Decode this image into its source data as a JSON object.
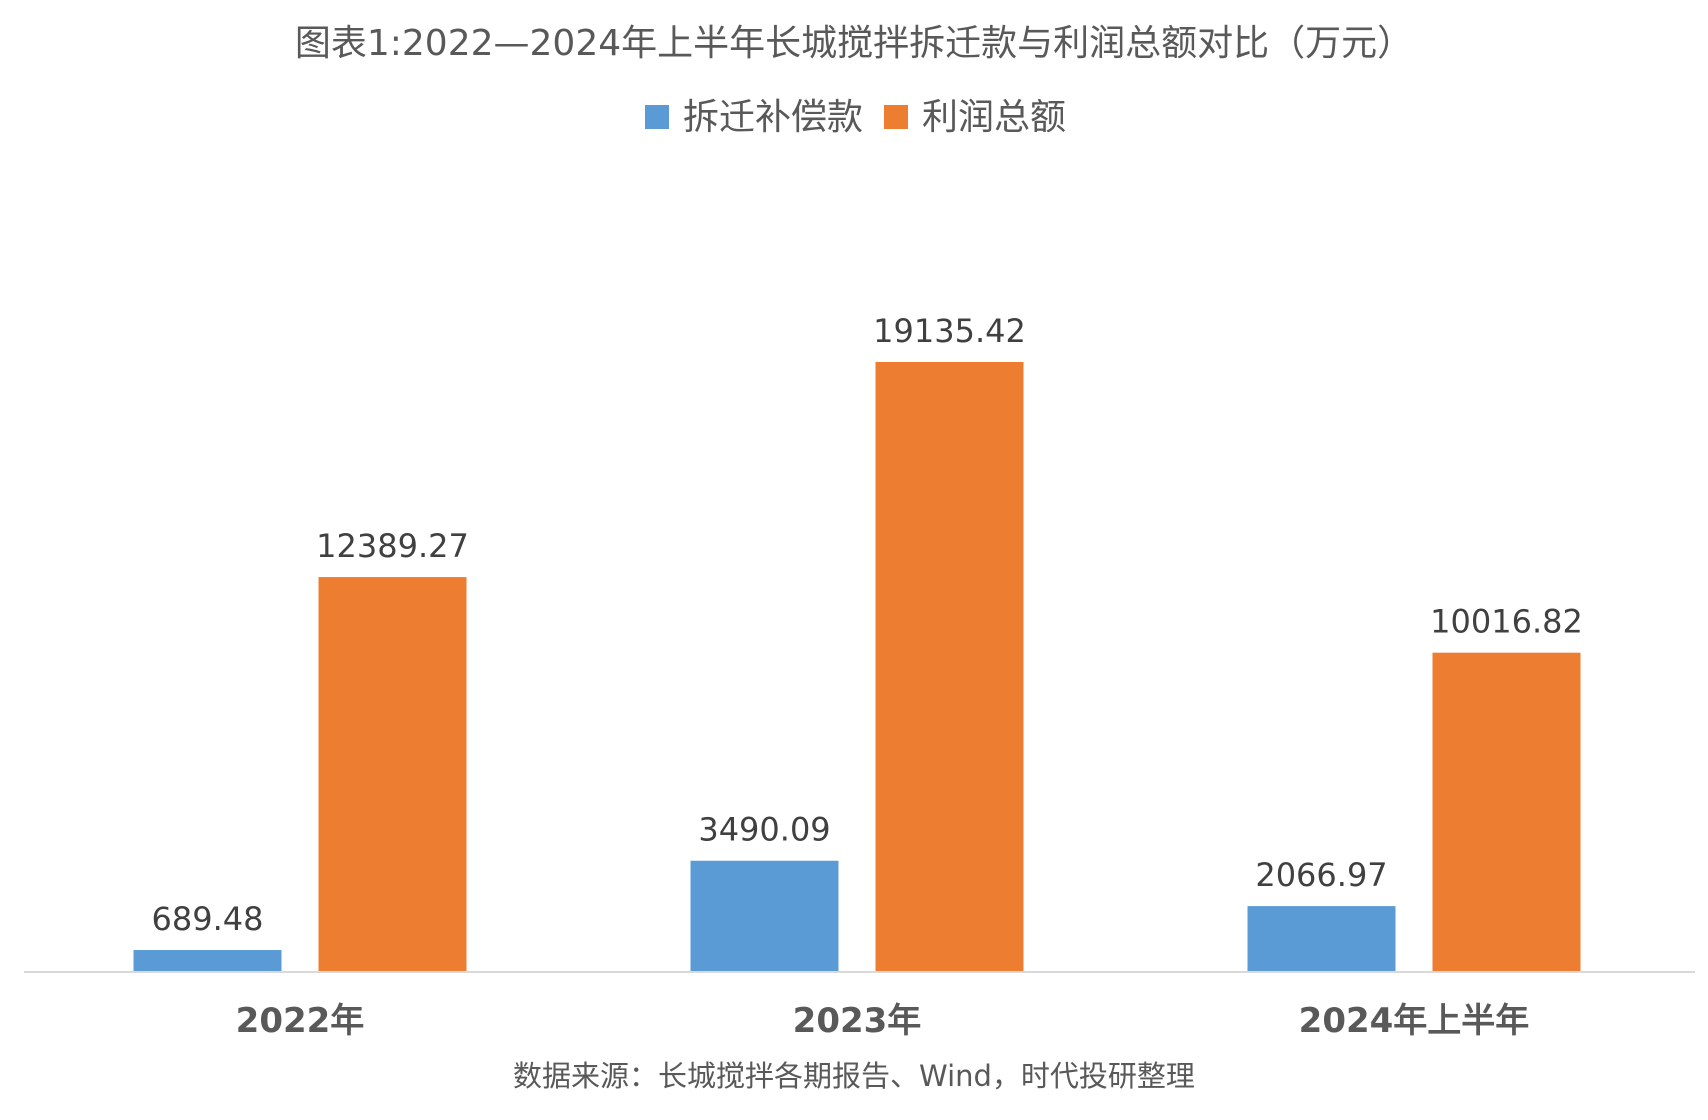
{
  "chart_data": {
    "type": "bar",
    "title": "图表1:2022—2024年上半年长城搅拌拆迁款与利润总额对比（万元）",
    "categories": [
      "2022年",
      "2023年",
      "2024年上半年"
    ],
    "series": [
      {
        "name": "拆迁补偿款",
        "color": "#5b9bd5",
        "values": [
          689.48,
          3490.09,
          2066.97
        ],
        "labels": [
          "689.48",
          "3490.09",
          "2066.97"
        ]
      },
      {
        "name": "利润总额",
        "color": "#ed7d31",
        "values": [
          12389.27,
          19135.42,
          10016.82
        ],
        "labels": [
          "12389.27",
          "19135.42",
          "10016.82"
        ]
      }
    ],
    "ylim": [
      0,
      25000
    ],
    "grid": false,
    "y_axis_visible": false,
    "legend_position": "top-center",
    "source": "数据来源：长城搅拌各期报告、Wind，时代投研整理"
  }
}
